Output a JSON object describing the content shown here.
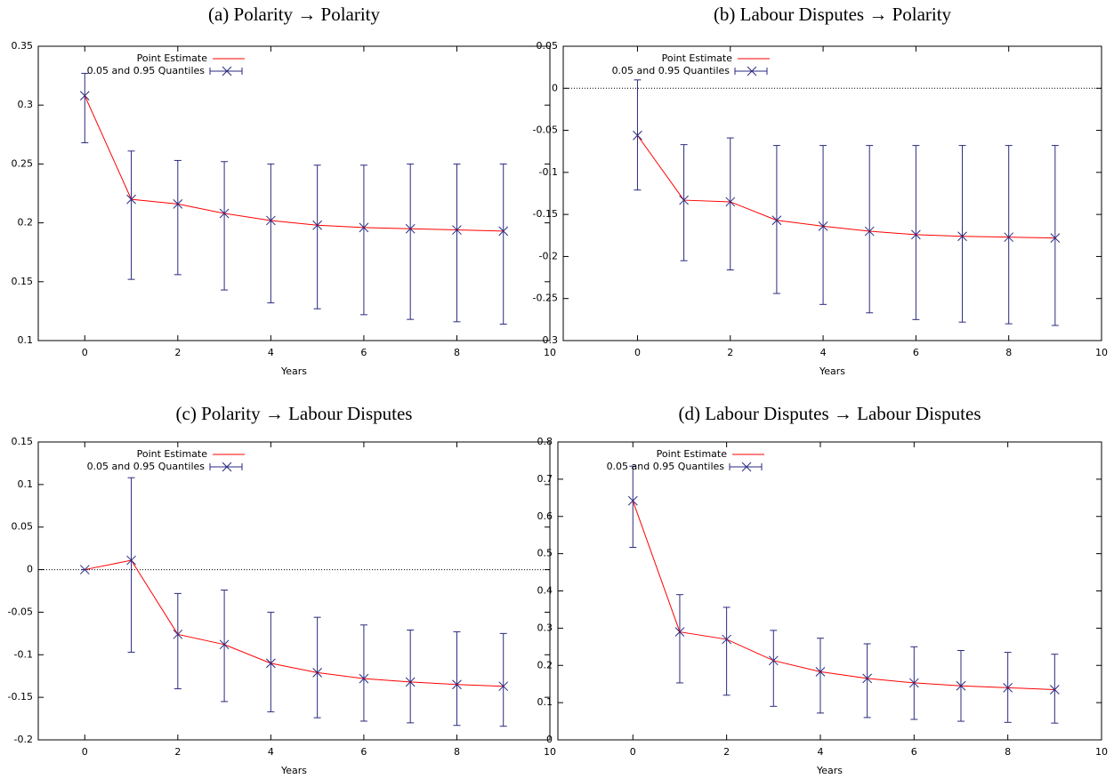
{
  "chart_data": [
    {
      "type": "line",
      "title": "(a) Polarity → Polarity",
      "xlabel": "Years",
      "x": [
        0,
        1,
        2,
        3,
        4,
        5,
        6,
        7,
        8,
        9
      ],
      "xlim": [
        -1,
        10
      ],
      "xticks": [
        0,
        2,
        4,
        6,
        8,
        10
      ],
      "ylim": [
        0.1,
        0.35
      ],
      "yticks": [
        0.1,
        0.15,
        0.2,
        0.25,
        0.3,
        0.35
      ],
      "zero_line": false,
      "series": [
        {
          "name": "Point Estimate",
          "color": "#ff0000",
          "values": [
            0.308,
            0.22,
            0.216,
            0.208,
            0.202,
            0.198,
            0.196,
            0.195,
            0.194,
            0.193
          ]
        },
        {
          "name": "0.05 and 0.95 Quantiles",
          "color": "#2a2a80",
          "lower": [
            0.268,
            0.152,
            0.156,
            0.143,
            0.132,
            0.127,
            0.122,
            0.118,
            0.116,
            0.114
          ],
          "upper": [
            0.327,
            0.261,
            0.253,
            0.252,
            0.25,
            0.249,
            0.249,
            0.25,
            0.25,
            0.25
          ]
        }
      ]
    },
    {
      "type": "line",
      "title": "(b) Labour Disputes → Polarity",
      "xlabel": "Years",
      "x": [
        0,
        1,
        2,
        3,
        4,
        5,
        6,
        7,
        8,
        9
      ],
      "xlim": [
        -1.6,
        10
      ],
      "xticks": [
        0,
        2,
        4,
        6,
        8,
        10
      ],
      "ylim": [
        -0.3,
        0.05
      ],
      "yticks": [
        -0.3,
        -0.25,
        -0.2,
        -0.15,
        -0.1,
        -0.05,
        0,
        0.05
      ],
      "zero_line": true,
      "series": [
        {
          "name": "Point Estimate",
          "color": "#ff0000",
          "values": [
            -0.056,
            -0.133,
            -0.135,
            -0.157,
            -0.164,
            -0.17,
            -0.174,
            -0.176,
            -0.177,
            -0.178
          ]
        },
        {
          "name": "0.05 and 0.95 Quantiles",
          "color": "#2a2a80",
          "lower": [
            -0.121,
            -0.205,
            -0.216,
            -0.244,
            -0.257,
            -0.267,
            -0.275,
            -0.278,
            -0.28,
            -0.282
          ],
          "upper": [
            0.01,
            -0.067,
            -0.059,
            -0.068,
            -0.068,
            -0.068,
            -0.068,
            -0.068,
            -0.068,
            -0.068
          ]
        }
      ]
    },
    {
      "type": "line",
      "title": "(c) Polarity → Labour Disputes",
      "xlabel": "Years",
      "x": [
        0,
        1,
        2,
        3,
        4,
        5,
        6,
        7,
        8,
        9
      ],
      "xlim": [
        -1,
        10
      ],
      "xticks": [
        0,
        2,
        4,
        6,
        8,
        10
      ],
      "ylim": [
        -0.2,
        0.15
      ],
      "yticks": [
        -0.2,
        -0.15,
        -0.1,
        -0.05,
        0,
        0.05,
        0.1,
        0.15
      ],
      "zero_line": true,
      "series": [
        {
          "name": "Point Estimate",
          "color": "#ff0000",
          "values": [
            0,
            0.011,
            -0.076,
            -0.088,
            -0.11,
            -0.121,
            -0.128,
            -0.132,
            -0.135,
            -0.137
          ]
        },
        {
          "name": "0.05 and 0.95 Quantiles",
          "color": "#2a2a80",
          "lower": [
            0,
            -0.097,
            -0.14,
            -0.155,
            -0.167,
            -0.174,
            -0.178,
            -0.18,
            -0.183,
            -0.184
          ],
          "upper": [
            0,
            0.108,
            -0.028,
            -0.024,
            -0.05,
            -0.056,
            -0.065,
            -0.071,
            -0.073,
            -0.075
          ]
        }
      ]
    },
    {
      "type": "line",
      "title": "(d) Labour Disputes → Labour Disputes",
      "xlabel": "Years",
      "x": [
        0,
        1,
        2,
        3,
        4,
        5,
        6,
        7,
        8,
        9
      ],
      "xlim": [
        -1.6,
        10
      ],
      "xticks": [
        0,
        2,
        4,
        6,
        8,
        10
      ],
      "ylim": [
        0,
        0.8
      ],
      "yticks": [
        0,
        0.1,
        0.2,
        0.3,
        0.4,
        0.5,
        0.6,
        0.7,
        0.8
      ],
      "zero_line": false,
      "series": [
        {
          "name": "Point Estimate",
          "color": "#ff0000",
          "values": [
            0.642,
            0.29,
            0.27,
            0.213,
            0.183,
            0.165,
            0.153,
            0.145,
            0.14,
            0.135
          ]
        },
        {
          "name": "0.05 and 0.95 Quantiles",
          "color": "#2a2a80",
          "lower": [
            0.517,
            0.153,
            0.12,
            0.09,
            0.072,
            0.06,
            0.055,
            0.05,
            0.047,
            0.045
          ],
          "upper": [
            0.735,
            0.39,
            0.356,
            0.294,
            0.273,
            0.258,
            0.25,
            0.24,
            0.235,
            0.23
          ]
        }
      ]
    }
  ]
}
